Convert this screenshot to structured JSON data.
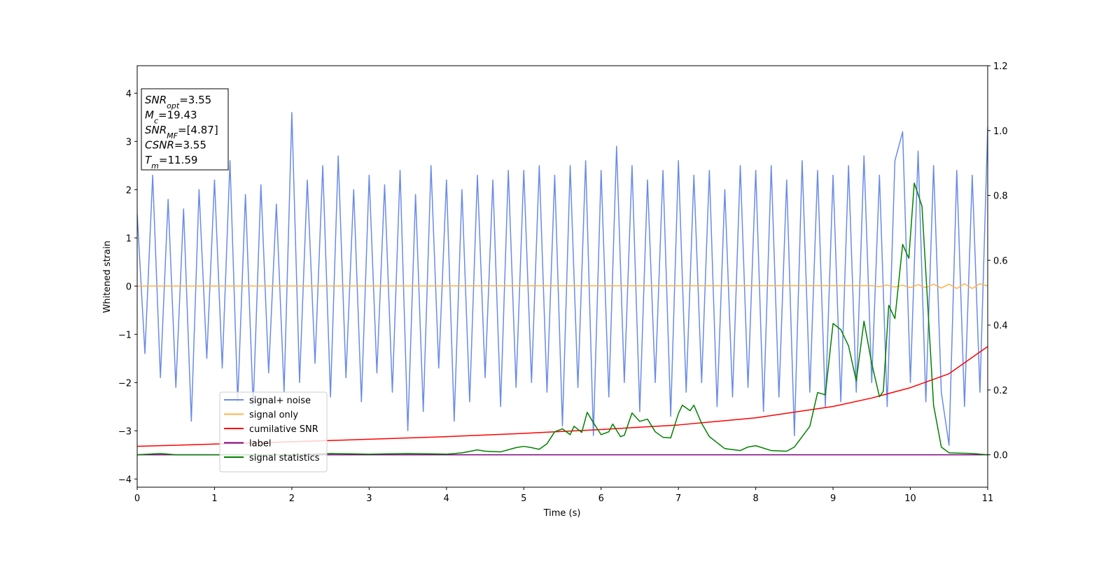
{
  "chart_data": {
    "type": "line",
    "xlabel": "Time (s)",
    "ylabel": "Whitened strain",
    "xlim": [
      0,
      11
    ],
    "xticks": [
      0,
      1,
      2,
      3,
      4,
      5,
      6,
      7,
      8,
      9,
      10,
      11
    ],
    "ylim": [
      -4.17,
      4.57
    ],
    "yticks": [
      {
        "value": -4,
        "label": "−4"
      },
      {
        "value": -3,
        "label": "−3"
      },
      {
        "value": -2,
        "label": "−2"
      },
      {
        "value": -1,
        "label": "−1"
      },
      0,
      1,
      2,
      3,
      4
    ],
    "y2lim": [
      -0.1,
      1.2
    ],
    "y2ticks": [
      {
        "value": 0,
        "label": "0.0"
      },
      0.2,
      0.4,
      0.6,
      0.8,
      {
        "value": 1,
        "label": "1.0"
      },
      1.2
    ],
    "legend_loc": "lower left",
    "annotation": [
      {
        "base": "SNR",
        "sub": "opt",
        "text": "=3.55"
      },
      {
        "base": "M",
        "sub": "c",
        "text": "=19.43"
      },
      {
        "base": "SNR",
        "sub": "MF",
        "text": "=[4.87]"
      },
      {
        "base": "CSNR",
        "sub": "",
        "text": "=3.55"
      },
      {
        "base": "T",
        "sub": "m",
        "text": "=11.59"
      }
    ],
    "series": [
      {
        "name": "signal+ noise",
        "color": "#6a8be6",
        "axis": "y",
        "x": [
          0,
          0.1,
          0.2,
          0.3,
          0.4,
          0.5,
          0.6,
          0.7,
          0.8,
          0.9,
          1,
          1.1,
          1.2,
          1.3,
          1.4,
          1.5,
          1.6,
          1.7,
          1.8,
          1.9,
          2,
          2.1,
          2.2,
          2.3,
          2.4,
          2.5,
          2.6,
          2.7,
          2.8,
          2.9,
          3,
          3.1,
          3.2,
          3.3,
          3.4,
          3.5,
          3.6,
          3.7,
          3.8,
          3.9,
          4,
          4.1,
          4.2,
          4.3,
          4.4,
          4.5,
          4.6,
          4.7,
          4.8,
          4.9,
          5,
          5.1,
          5.2,
          5.3,
          5.4,
          5.5,
          5.6,
          5.7,
          5.8,
          5.9,
          6,
          6.1,
          6.2,
          6.3,
          6.4,
          6.5,
          6.6,
          6.7,
          6.8,
          6.9,
          7,
          7.1,
          7.2,
          7.3,
          7.4,
          7.5,
          7.6,
          7.7,
          7.8,
          7.9,
          8,
          8.1,
          8.2,
          8.3,
          8.4,
          8.5,
          8.6,
          8.7,
          8.8,
          8.9,
          9,
          9.1,
          9.2,
          9.3,
          9.4,
          9.5,
          9.6,
          9.7,
          9.8,
          9.9,
          10,
          10.1,
          10.2,
          10.3,
          10.4,
          10.5,
          10.6,
          10.7,
          10.8,
          10.9,
          11
        ],
        "values": [
          1.5,
          -1.4,
          2.3,
          -1.9,
          1.8,
          -2.1,
          1.6,
          -2.8,
          2.0,
          -1.5,
          2.2,
          -1.7,
          2.6,
          -2.4,
          1.9,
          -2.5,
          2.1,
          -1.8,
          1.7,
          -2.2,
          3.6,
          -2.0,
          2.2,
          -1.6,
          2.5,
          -2.3,
          2.7,
          -1.9,
          2.0,
          -2.4,
          2.3,
          -1.8,
          2.1,
          -2.2,
          2.4,
          -3.0,
          1.9,
          -2.6,
          2.5,
          -1.7,
          2.2,
          -2.8,
          2.0,
          -2.4,
          2.3,
          -1.9,
          2.2,
          -2.5,
          2.4,
          -2.1,
          2.4,
          -2.0,
          2.5,
          -2.2,
          2.3,
          -2.9,
          2.5,
          -2.1,
          2.6,
          -3.1,
          2.4,
          -2.3,
          2.9,
          -2.0,
          2.5,
          -2.6,
          2.2,
          -2.0,
          2.4,
          -2.7,
          2.6,
          -2.2,
          2.3,
          -2.0,
          2.4,
          -2.5,
          2.0,
          -2.3,
          2.5,
          -2.1,
          2.4,
          -2.6,
          2.5,
          -2.3,
          2.2,
          -3.1,
          2.6,
          -2.2,
          2.4,
          -2.5,
          2.3,
          -2.4,
          2.5,
          -2.2,
          2.7,
          -2.0,
          2.3,
          -2.5,
          2.6,
          3.2,
          -2.0,
          2.8,
          -2.4,
          2.5,
          -2.2,
          -3.3,
          2.4,
          -2.5,
          2.3,
          -2.2,
          3.3
        ]
      },
      {
        "name": "signal only",
        "color": "#ffb347",
        "axis": "y",
        "x": [
          0,
          9.5,
          9.6,
          9.7,
          9.8,
          9.9,
          10,
          10.1,
          10.2,
          10.3,
          10.4,
          10.5,
          10.6,
          10.7,
          10.8,
          10.9,
          11
        ],
        "values": [
          0,
          0.01,
          -0.01,
          0.02,
          -0.02,
          0.02,
          -0.03,
          0.03,
          -0.03,
          0.04,
          -0.04,
          0.04,
          -0.05,
          0.05,
          -0.05,
          0.05,
          0
        ]
      },
      {
        "name": "cumilative SNR",
        "color": "#ff0000",
        "axis": "y2",
        "x": [
          0,
          1,
          2,
          3,
          4,
          5,
          6,
          7,
          8,
          9,
          9.5,
          10,
          10.5,
          11
        ],
        "values": [
          0.026,
          0.033,
          0.04,
          0.048,
          0.056,
          0.066,
          0.078,
          0.092,
          0.114,
          0.149,
          0.175,
          0.207,
          0.25,
          0.334
        ]
      },
      {
        "name": "label",
        "color": "#800080",
        "axis": "y2",
        "x": [
          0,
          11
        ],
        "values": [
          0,
          0
        ]
      },
      {
        "name": "signal statistics",
        "color": "#008000",
        "axis": "y2",
        "x": [
          0,
          0.3,
          0.5,
          1,
          2,
          2.5,
          3,
          3.5,
          4,
          4.2,
          4.4,
          4.5,
          4.7,
          4.9,
          5,
          5.1,
          5.2,
          5.3,
          5.4,
          5.5,
          5.6,
          5.65,
          5.75,
          5.82,
          5.9,
          6,
          6.1,
          6.15,
          6.25,
          6.3,
          6.4,
          6.5,
          6.6,
          6.7,
          6.8,
          6.9,
          7,
          7.05,
          7.15,
          7.2,
          7.3,
          7.4,
          7.6,
          7.8,
          7.9,
          8,
          8.2,
          8.4,
          8.5,
          8.6,
          8.7,
          8.8,
          8.9,
          9,
          9.1,
          9.2,
          9.3,
          9.4,
          9.5,
          9.6,
          9.65,
          9.72,
          9.8,
          9.9,
          9.98,
          10.05,
          10.15,
          10.3,
          10.4,
          10.5,
          10.8,
          11
        ],
        "values": [
          0,
          0.004,
          0,
          0,
          0,
          0.004,
          0.002,
          0.004,
          0.002,
          0.006,
          0.015,
          0.011,
          0.009,
          0.022,
          0.026,
          0.022,
          0.017,
          0.034,
          0.071,
          0.08,
          0.062,
          0.088,
          0.069,
          0.131,
          0.099,
          0.062,
          0.071,
          0.095,
          0.056,
          0.06,
          0.129,
          0.103,
          0.11,
          0.071,
          0.054,
          0.052,
          0.127,
          0.153,
          0.136,
          0.153,
          0.097,
          0.056,
          0.019,
          0.013,
          0.024,
          0.028,
          0.013,
          0.011,
          0.024,
          0.056,
          0.088,
          0.192,
          0.185,
          0.405,
          0.386,
          0.336,
          0.228,
          0.412,
          0.282,
          0.179,
          0.196,
          0.461,
          0.42,
          0.649,
          0.606,
          0.838,
          0.767,
          0.153,
          0.024,
          0.006,
          0.004,
          0
        ]
      }
    ]
  }
}
